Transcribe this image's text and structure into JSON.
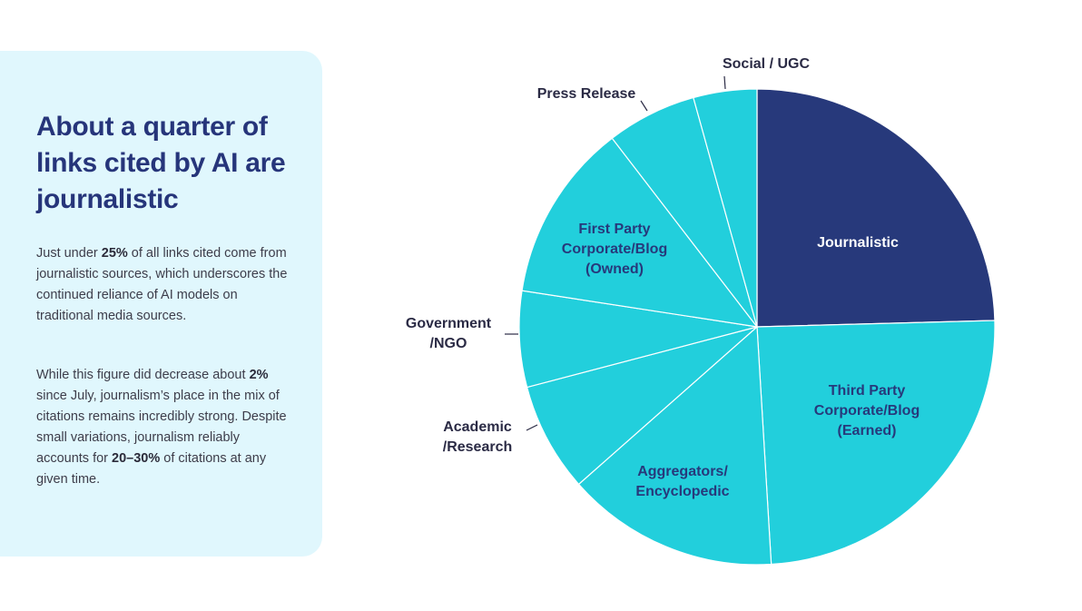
{
  "panel": {
    "title": "About a quarter of links cited by AI are journalistic",
    "p1": {
      "a": "Just under ",
      "b": "25%",
      "c": " of all links cited come from journalistic sources, which underscores the continued reliance of AI models on traditional media sources."
    },
    "p2": {
      "a": "While this figure did decrease about ",
      "b": "2%",
      "c": " since July, journalism’s place in the mix of citations remains incredibly strong. Despite small variations, journalism reliably accounts for ",
      "d": "20–30%",
      "e": " of citations at any given time."
    }
  },
  "chart_data": {
    "type": "pie",
    "title": "",
    "start": "top, clockwise",
    "slices": [
      {
        "label": [
          "Journalistic"
        ],
        "value": 24.5,
        "color": "#27397b",
        "label_color": "#ffffff"
      },
      {
        "label": [
          "Third Party",
          "Corporate/Blog",
          "(Earned)"
        ],
        "value": 24.4,
        "color": "#22cfdc",
        "label_color": "#27397b"
      },
      {
        "label": [
          "Aggregators/",
          "Encyclopedic"
        ],
        "value": 14.4,
        "color": "#22cfdc",
        "label_color": "#27397b"
      },
      {
        "label": [
          "Academic",
          "/Research"
        ],
        "value": 7.4,
        "color": "#22cfdc",
        "label_color": "#2b2b45"
      },
      {
        "label": [
          "Government",
          "/NGO"
        ],
        "value": 6.5,
        "color": "#22cfdc",
        "label_color": "#2b2b45"
      },
      {
        "label": [
          "First Party",
          "Corporate/Blog",
          "(Owned)"
        ],
        "value": 12.1,
        "color": "#22cfdc",
        "label_color": "#27397b"
      },
      {
        "label": [
          "Press Release"
        ],
        "value": 6.1,
        "color": "#22cfdc",
        "label_color": "#2b2b45"
      },
      {
        "label": [
          "Social / UGC"
        ],
        "value": 4.3,
        "color": "#22cfdc",
        "label_color": "#2b2b45"
      }
    ]
  }
}
